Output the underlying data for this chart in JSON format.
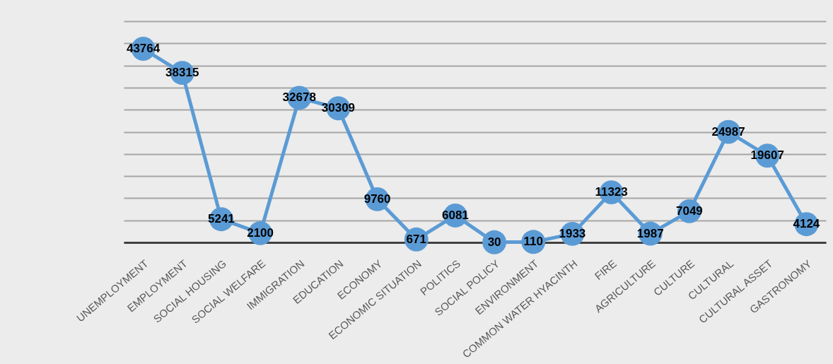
{
  "chart_data": {
    "type": "line",
    "categories": [
      "UNEMPLOYMENT",
      "EMPLOYMENT",
      "SOCIAL HOUSING",
      "SOCIAL WELFARE",
      "IMMIGRATION",
      "EDUCATION",
      "ECONOMY",
      "ECONOMIC SITUATION",
      "POLITICS",
      "SOCIAL POLICY",
      "ENVIRONMENT",
      "COMMON WATER HYACINTH",
      "FIRE",
      "AGRICULTURE",
      "CULTURE",
      "CULTURAL",
      "CULTURAL ASSET",
      "GASTRONOMY"
    ],
    "series": [
      {
        "color": "#5b9bd5",
        "values": [
          43764,
          38315,
          5241,
          2100,
          32678,
          30309,
          9760,
          671,
          6081,
          30,
          110,
          1933,
          11323,
          1987,
          7049,
          24987,
          19607,
          4124
        ]
      }
    ],
    "ylim": [
      0,
      50000
    ],
    "tick_labels": "x",
    "grid": "y",
    "marker": "circle",
    "line_style": "solid",
    "data_labels": true
  }
}
